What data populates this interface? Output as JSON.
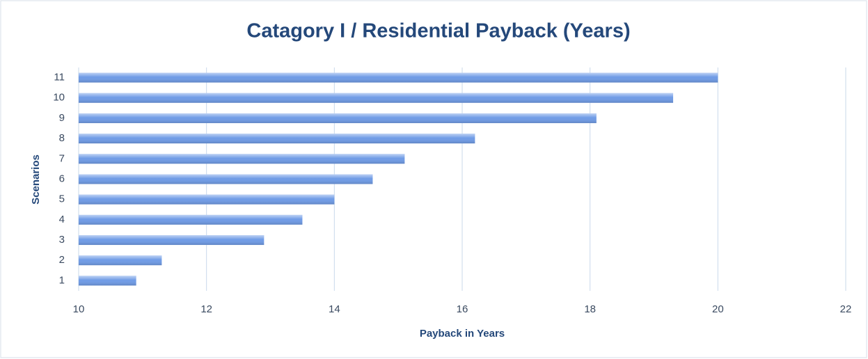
{
  "chart_data": {
    "type": "barh",
    "title": "Catagory I / Residential Payback (Years)",
    "x_label": "Payback in Years",
    "y_label": "Scenarios",
    "categories": [
      "1",
      "2",
      "3",
      "4",
      "5",
      "6",
      "7",
      "8",
      "9",
      "10",
      "11"
    ],
    "values": [
      10.9,
      11.3,
      12.9,
      13.5,
      14.0,
      14.6,
      15.1,
      16.2,
      18.1,
      19.3,
      20.0
    ],
    "color": "#6f9be6",
    "xlim": [
      10,
      22
    ],
    "xticks": [
      10,
      12,
      14,
      16,
      18,
      20,
      22
    ],
    "grid": true
  }
}
